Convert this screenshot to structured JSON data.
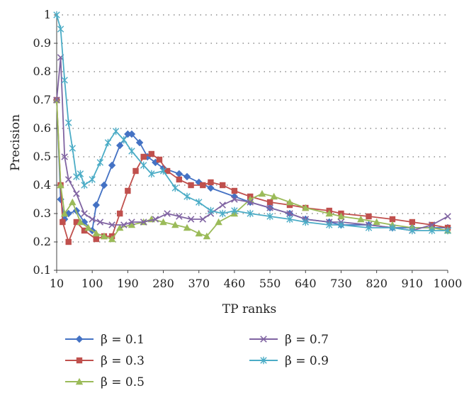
{
  "chart_data": {
    "type": "line",
    "title": "",
    "xlabel": "TP ranks",
    "ylabel": "Precision",
    "xlim": [
      10,
      1000
    ],
    "ylim": [
      0.1,
      1.0
    ],
    "xticks": [
      10,
      100,
      190,
      280,
      370,
      460,
      550,
      640,
      730,
      820,
      910,
      1000
    ],
    "yticks": [
      0.1,
      0.2,
      0.3,
      0.4,
      0.5,
      0.6,
      0.7,
      0.8,
      0.9,
      1.0
    ],
    "ytick_labels": [
      "0.1",
      "0.2",
      "0.3",
      "0.4",
      "0.5",
      "0.6",
      "0.7",
      "0.8",
      "0.9",
      "1"
    ],
    "grid": "horizontal-dotted",
    "legend_position": "bottom",
    "series": [
      {
        "name": "β = 0.1",
        "color": "#4472C4",
        "marker": "diamond",
        "points": [
          [
            10,
            0.7
          ],
          [
            20,
            0.35
          ],
          [
            30,
            0.28
          ],
          [
            40,
            0.3
          ],
          [
            60,
            0.31
          ],
          [
            80,
            0.27
          ],
          [
            100,
            0.24
          ],
          [
            110,
            0.33
          ],
          [
            130,
            0.4
          ],
          [
            150,
            0.47
          ],
          [
            170,
            0.54
          ],
          [
            190,
            0.58
          ],
          [
            200,
            0.58
          ],
          [
            220,
            0.55
          ],
          [
            240,
            0.5
          ],
          [
            260,
            0.48
          ],
          [
            280,
            0.46
          ],
          [
            320,
            0.44
          ],
          [
            340,
            0.43
          ],
          [
            370,
            0.41
          ],
          [
            400,
            0.39
          ],
          [
            460,
            0.36
          ],
          [
            500,
            0.34
          ],
          [
            550,
            0.32
          ],
          [
            600,
            0.3
          ],
          [
            640,
            0.28
          ],
          [
            700,
            0.27
          ],
          [
            730,
            0.26
          ],
          [
            800,
            0.26
          ],
          [
            860,
            0.25
          ],
          [
            910,
            0.25
          ],
          [
            960,
            0.25
          ],
          [
            1000,
            0.25
          ]
        ]
      },
      {
        "name": "β = 0.3",
        "color": "#C0504D",
        "marker": "square",
        "points": [
          [
            10,
            0.7
          ],
          [
            20,
            0.4
          ],
          [
            25,
            0.27
          ],
          [
            40,
            0.2
          ],
          [
            60,
            0.27
          ],
          [
            80,
            0.24
          ],
          [
            110,
            0.21
          ],
          [
            130,
            0.22
          ],
          [
            150,
            0.22
          ],
          [
            170,
            0.3
          ],
          [
            190,
            0.38
          ],
          [
            210,
            0.45
          ],
          [
            230,
            0.5
          ],
          [
            250,
            0.51
          ],
          [
            270,
            0.49
          ],
          [
            290,
            0.45
          ],
          [
            320,
            0.42
          ],
          [
            350,
            0.4
          ],
          [
            380,
            0.4
          ],
          [
            400,
            0.41
          ],
          [
            430,
            0.4
          ],
          [
            460,
            0.38
          ],
          [
            500,
            0.36
          ],
          [
            550,
            0.34
          ],
          [
            600,
            0.33
          ],
          [
            640,
            0.32
          ],
          [
            700,
            0.31
          ],
          [
            730,
            0.3
          ],
          [
            800,
            0.29
          ],
          [
            860,
            0.28
          ],
          [
            910,
            0.27
          ],
          [
            960,
            0.26
          ],
          [
            1000,
            0.25
          ]
        ]
      },
      {
        "name": "β = 0.5",
        "color": "#9BBB59",
        "marker": "triangle",
        "points": [
          [
            10,
            0.7
          ],
          [
            20,
            0.4
          ],
          [
            30,
            0.3
          ],
          [
            50,
            0.34
          ],
          [
            70,
            0.27
          ],
          [
            90,
            0.25
          ],
          [
            110,
            0.23
          ],
          [
            130,
            0.22
          ],
          [
            150,
            0.21
          ],
          [
            170,
            0.25
          ],
          [
            200,
            0.26
          ],
          [
            230,
            0.27
          ],
          [
            250,
            0.28
          ],
          [
            280,
            0.27
          ],
          [
            310,
            0.26
          ],
          [
            340,
            0.25
          ],
          [
            370,
            0.23
          ],
          [
            390,
            0.22
          ],
          [
            420,
            0.27
          ],
          [
            460,
            0.3
          ],
          [
            500,
            0.35
          ],
          [
            530,
            0.37
          ],
          [
            560,
            0.36
          ],
          [
            600,
            0.34
          ],
          [
            640,
            0.32
          ],
          [
            700,
            0.3
          ],
          [
            730,
            0.29
          ],
          [
            780,
            0.28
          ],
          [
            820,
            0.27
          ],
          [
            860,
            0.26
          ],
          [
            910,
            0.25
          ],
          [
            960,
            0.25
          ],
          [
            1000,
            0.24
          ]
        ]
      },
      {
        "name": "β = 0.7",
        "color": "#8064A2",
        "marker": "x",
        "points": [
          [
            10,
            0.7
          ],
          [
            20,
            0.85
          ],
          [
            30,
            0.5
          ],
          [
            40,
            0.42
          ],
          [
            60,
            0.37
          ],
          [
            80,
            0.3
          ],
          [
            100,
            0.28
          ],
          [
            120,
            0.27
          ],
          [
            150,
            0.26
          ],
          [
            180,
            0.26
          ],
          [
            200,
            0.27
          ],
          [
            230,
            0.27
          ],
          [
            260,
            0.28
          ],
          [
            290,
            0.3
          ],
          [
            320,
            0.29
          ],
          [
            350,
            0.28
          ],
          [
            380,
            0.28
          ],
          [
            400,
            0.3
          ],
          [
            430,
            0.33
          ],
          [
            460,
            0.35
          ],
          [
            500,
            0.34
          ],
          [
            550,
            0.32
          ],
          [
            600,
            0.3
          ],
          [
            640,
            0.28
          ],
          [
            700,
            0.27
          ],
          [
            730,
            0.27
          ],
          [
            800,
            0.26
          ],
          [
            860,
            0.25
          ],
          [
            910,
            0.24
          ],
          [
            960,
            0.26
          ],
          [
            1000,
            0.29
          ]
        ]
      },
      {
        "name": "β = 0.9",
        "color": "#4BACC6",
        "marker": "star",
        "points": [
          [
            10,
            1.0
          ],
          [
            20,
            0.95
          ],
          [
            30,
            0.77
          ],
          [
            40,
            0.62
          ],
          [
            50,
            0.53
          ],
          [
            60,
            0.43
          ],
          [
            70,
            0.44
          ],
          [
            80,
            0.4
          ],
          [
            100,
            0.42
          ],
          [
            120,
            0.48
          ],
          [
            140,
            0.55
          ],
          [
            160,
            0.59
          ],
          [
            180,
            0.56
          ],
          [
            200,
            0.52
          ],
          [
            230,
            0.47
          ],
          [
            250,
            0.44
          ],
          [
            280,
            0.45
          ],
          [
            310,
            0.39
          ],
          [
            340,
            0.36
          ],
          [
            370,
            0.34
          ],
          [
            400,
            0.31
          ],
          [
            430,
            0.3
          ],
          [
            460,
            0.31
          ],
          [
            500,
            0.3
          ],
          [
            550,
            0.29
          ],
          [
            600,
            0.28
          ],
          [
            640,
            0.27
          ],
          [
            700,
            0.26
          ],
          [
            730,
            0.26
          ],
          [
            800,
            0.25
          ],
          [
            860,
            0.25
          ],
          [
            910,
            0.24
          ],
          [
            960,
            0.24
          ],
          [
            1000,
            0.24
          ]
        ]
      }
    ]
  }
}
